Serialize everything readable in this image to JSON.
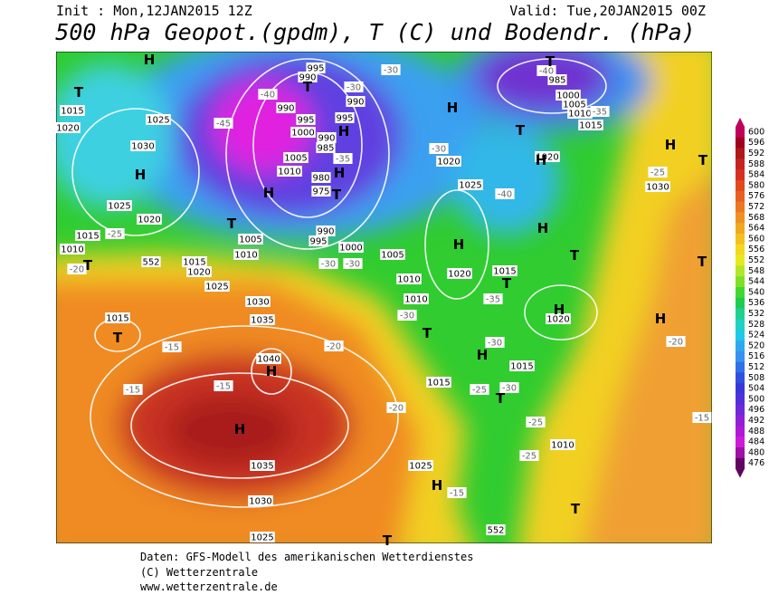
{
  "header": {
    "init": "Init : Mon,12JAN2015 12Z",
    "valid": "Valid: Tue,20JAN2015 00Z",
    "title": "500 hPa Geopot.(gpdm), T (C) und Bodendr. (hPa)"
  },
  "map": {
    "labels": [
      "1015",
      "1020",
      "1025",
      "1030",
      "1025",
      "1020",
      "1015",
      "1010",
      "1005",
      "1010",
      "1015",
      "1020",
      "1025",
      "1030",
      "1035",
      "1040",
      "1035",
      "1030",
      "1025",
      "1015",
      "995",
      "990",
      "990",
      "995",
      "1000",
      "1005",
      "1010",
      "985",
      "980",
      "975",
      "995",
      "990",
      "1000",
      "1005",
      "1010",
      "1010",
      "1020",
      "1015",
      "1020",
      "1015",
      "1015",
      "1025",
      "1010",
      "1025",
      "1020",
      "1020",
      "1030",
      "1015",
      "1010",
      "1005",
      "1000",
      "985",
      "990",
      "995",
      "990",
      "-45",
      "-40",
      "-35",
      "-30",
      "-30",
      "-30",
      "-30",
      "-30",
      "-35",
      "-30",
      "-30",
      "-25",
      "-25",
      "-25",
      "-20",
      "-25",
      "-15",
      "-15",
      "-15",
      "-20",
      "-20",
      "-15",
      "-30",
      "-40",
      "-25",
      "-20",
      "-15",
      "-40",
      "-35",
      "H",
      "T",
      "H",
      "T",
      "H",
      "H",
      "H",
      "T",
      "T",
      "T",
      "H",
      "T",
      "T",
      "H",
      "H",
      "T",
      "H",
      "H",
      "T",
      "T",
      "H",
      "T",
      "T",
      "H",
      "H",
      "T",
      "H",
      "H",
      "T",
      "H",
      "T",
      "T",
      "552",
      "552"
    ]
  },
  "colorbar": {
    "values": [
      600,
      596,
      592,
      588,
      584,
      580,
      576,
      572,
      568,
      564,
      560,
      556,
      552,
      548,
      544,
      540,
      536,
      532,
      528,
      524,
      520,
      516,
      512,
      508,
      504,
      500,
      496,
      492,
      488,
      484,
      480,
      476
    ],
    "colors": [
      "#c0005a",
      "#a00020",
      "#b01818",
      "#c42420",
      "#d83020",
      "#e04a1c",
      "#e86020",
      "#ec7820",
      "#f09020",
      "#f0a820",
      "#f4c020",
      "#f4d820",
      "#e8e820",
      "#b4e628",
      "#80e028",
      "#40d830",
      "#20cc50",
      "#20d090",
      "#20d0c0",
      "#20c8e8",
      "#30a8f0",
      "#3890f0",
      "#3070e8",
      "#3050e0",
      "#3838d8",
      "#5030d8",
      "#7028d8",
      "#9020d8",
      "#b018d8",
      "#d018d8",
      "#a010a8",
      "#600060"
    ]
  },
  "footer": {
    "lines": [
      "Daten: GFS-Modell des amerikanischen Wetterdienstes",
      "(C) Wetterzentrale",
      "www.wetterzentrale.de"
    ]
  }
}
